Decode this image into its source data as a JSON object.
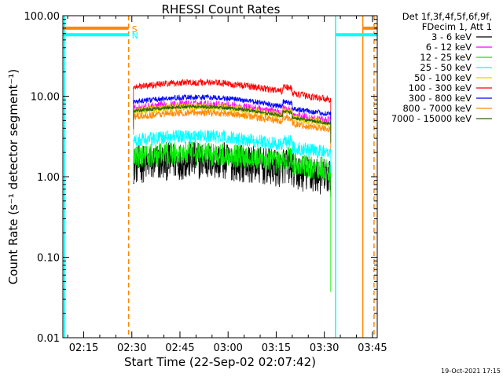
{
  "chart_data": {
    "type": "line",
    "title": "RHESSI Count Rates",
    "xlabel": "Start Time (22-Sep-02 02:07:42)",
    "ylabel": "Count Rate (s⁻¹ detector segment⁻¹)",
    "yscale": "log",
    "ylim": [
      0.01,
      100
    ],
    "xlim_minutes": [
      128.5,
      226.5
    ],
    "x_ticks": [
      {
        "minutes": 135,
        "label": "02:15"
      },
      {
        "minutes": 150,
        "label": "02:30"
      },
      {
        "minutes": 165,
        "label": "02:45"
      },
      {
        "minutes": 180,
        "label": "03:00"
      },
      {
        "minutes": 195,
        "label": "03:15"
      },
      {
        "minutes": 210,
        "label": "03:30"
      },
      {
        "minutes": 225,
        "label": "03:45"
      }
    ],
    "y_ticks": [
      {
        "value": 0.01,
        "label": "0.01"
      },
      {
        "value": 0.1,
        "label": "0.10"
      },
      {
        "value": 1,
        "label": "1.00"
      },
      {
        "value": 10,
        "label": "10.00"
      },
      {
        "value": 100,
        "label": "100.00"
      }
    ],
    "legend_header": [
      "Det 1f,3f,4f,5f,6f,9f,",
      "FDecim 1, Att 1"
    ],
    "series": [
      {
        "name": "3 - 6 keV",
        "color": "#000000",
        "level": 1.4,
        "noise": 0.55
      },
      {
        "name": "6 - 12 keV",
        "color": "#ff00ff",
        "level": 7.0,
        "noise": 0.12
      },
      {
        "name": "12 - 25 keV",
        "color": "#00ee00",
        "level": 1.7,
        "noise": 0.35
      },
      {
        "name": "25 - 50 keV",
        "color": "#00ffff",
        "level": 2.8,
        "noise": 0.2
      },
      {
        "name": "50 - 100 keV",
        "color": "#e8d000",
        "level": 6.5,
        "noise": 0.12
      },
      {
        "name": "100 - 300 keV",
        "color": "#ff0000",
        "level": 13.0,
        "noise": 0.1
      },
      {
        "name": "300 - 800 keV",
        "color": "#0000ff",
        "level": 8.5,
        "noise": 0.08
      },
      {
        "name": "800 - 7000 keV",
        "color": "#ff8800",
        "level": 5.5,
        "noise": 0.1
      },
      {
        "name": "7000 - 15000 keV",
        "color": "#226600",
        "level": 6.5,
        "noise": 0.05
      }
    ],
    "data_interval_minutes": [
      150.5,
      212
    ],
    "flags": [
      {
        "label": "S",
        "color": "#ff8800",
        "value": 70,
        "segments_minutes": [
          [
            128.5,
            149
          ],
          [
            222,
            226.5
          ]
        ]
      },
      {
        "label": "N",
        "color": "#00ffff",
        "value": 58,
        "segments_minutes": [
          [
            128.5,
            149
          ],
          [
            213.5,
            226.5
          ]
        ]
      }
    ],
    "vertical_markers": [
      {
        "minutes": 129,
        "color": "#00ffff",
        "style": "solid"
      },
      {
        "minutes": 149,
        "color": "#ff8800",
        "style": "dashed"
      },
      {
        "minutes": 213.5,
        "color": "#00ffff",
        "style": "solid"
      },
      {
        "minutes": 222,
        "color": "#ff8800",
        "style": "solid"
      },
      {
        "minutes": 225.5,
        "color": "#ff8800",
        "style": "dashed"
      }
    ]
  },
  "footer": "19-Oct-2021 17:15"
}
